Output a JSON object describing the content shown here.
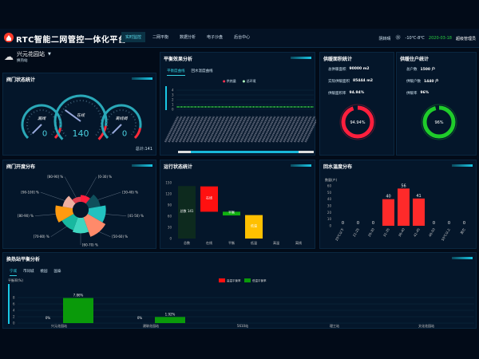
{
  "header": {
    "title": "RTC智能二网管控一体化平台",
    "nav": [
      "实时监控",
      "二网平衡",
      "数据分析",
      "电子沙盘",
      "后台中心"
    ],
    "active_nav": 0,
    "weather_label": "阴转晴",
    "temp": "-10℃-8℃",
    "date": "2020-03-18",
    "user": "超级管理员"
  },
  "station": {
    "name": "兴元花园站",
    "sub": "换热站"
  },
  "valve_status": {
    "title": "阀门状态统计",
    "gauges": [
      {
        "label": "漏阀",
        "value": "0"
      },
      {
        "label": "在线",
        "value": "140"
      },
      {
        "label": "离线阀",
        "value": "0"
      }
    ],
    "total": "总计:141"
  },
  "balance": {
    "title": "平衡效果分析",
    "tabs": [
      "平衡度曲线",
      "回水温度曲线"
    ],
    "active_tab": 0,
    "legend": [
      "供热量",
      "总环境"
    ],
    "yticks": [
      "4",
      "3",
      "2",
      "1",
      "0"
    ]
  },
  "area": {
    "title": "供暖面积统计",
    "rows": [
      {
        "k": "总供暖面积",
        "v": "90000 m2"
      },
      {
        "k": "实际供暖面积",
        "v": "85444 m2"
      },
      {
        "k": "供暖面积率",
        "v": "94.94%"
      }
    ],
    "ring_label": "94.94%",
    "ring_value": 94.94,
    "color": "#ff1f3d"
  },
  "households": {
    "title": "供暖住户统计",
    "rows": [
      {
        "k": "总户数",
        "v": "1500 户"
      },
      {
        "k": "供暖户数",
        "v": "1440 户"
      },
      {
        "k": "供暖率",
        "v": "96%"
      }
    ],
    "ring_label": "96%",
    "ring_value": 96,
    "color": "#1fcc2a"
  },
  "chart_data": [
    {
      "type": "pie",
      "title": "阀门开度分布",
      "variant": "rose",
      "categories": [
        "[0-30) %",
        "[30-40) %",
        "[41-50) %",
        "[50-60) %",
        "[60-70) %",
        "[70-80) %",
        "[80-90) %",
        "[90-100] %",
        "[80-90] %"
      ],
      "values": [
        3,
        6,
        9,
        11,
        8,
        7,
        9,
        5,
        2
      ],
      "colors": [
        "#ff1f3d",
        "#0f4f5c",
        "#22c2c0",
        "#ff8a6a",
        "#3fd6c0",
        "#18b8a0",
        "#ff9a10",
        "#f0b0a0",
        "#e04050"
      ]
    },
    {
      "type": "bar",
      "title": "运行状态统计",
      "variant": "waterfall",
      "categories": [
        "总数",
        "在线",
        "平衡",
        "低温",
        "高温",
        "离线"
      ],
      "ylim": [
        0,
        150
      ],
      "yticks": [
        0,
        30,
        60,
        90,
        120,
        150
      ],
      "bars": [
        {
          "from": 0,
          "to": 141,
          "label": "总数 141",
          "color": "#0d2a1e"
        },
        {
          "from": 72,
          "to": 140,
          "label": "在线",
          "color": "#ff1010"
        },
        {
          "from": 62,
          "to": 72,
          "label": "平衡",
          "color": "#10b010"
        },
        {
          "from": 0,
          "to": 63,
          "label": "低温",
          "color": "#ffc000"
        },
        {
          "from": 0,
          "to": 0,
          "label": "高温",
          "color": "#ffffff"
        },
        {
          "from": 0,
          "to": 0,
          "label": "离线",
          "color": "#ffffff"
        }
      ]
    },
    {
      "type": "bar",
      "title": "回水温度分布",
      "ylabel": "数量(户)",
      "categories": [
        "20℃以下",
        "21-25",
        "26-30",
        "31-35",
        "36-40",
        "41-45",
        "46-50",
        "50℃以上",
        "其它"
      ],
      "values": [
        0,
        0,
        0,
        40,
        56,
        41,
        0,
        0,
        0
      ],
      "ylim": [
        0,
        60
      ],
      "yticks": [
        0,
        10,
        20,
        30,
        40,
        50,
        60
      ],
      "color": "#ff2a2a"
    },
    {
      "type": "bar",
      "title": "换热站平衡分析",
      "ylabel": "平衡率(%)",
      "tabs": [
        "宁城",
        "市同城",
        "桃园",
        "国泰"
      ],
      "active_tab": 0,
      "categories": [
        "兴元花园站",
        "建联花园站",
        "5610站",
        "理工站",
        "文化花园站"
      ],
      "series": [
        {
          "name": "高温平衡率",
          "color": "#ff1010",
          "values": [
            0,
            0,
            null,
            null,
            null
          ]
        },
        {
          "name": "低温平衡率",
          "color": "#0a9a0a",
          "values": [
            7.86,
            1.92,
            null,
            null,
            null
          ]
        }
      ],
      "labels": [
        "0%",
        "7.86%",
        "0%",
        "1.92%"
      ],
      "ylim": [
        0,
        8
      ],
      "yticks": [
        0,
        2,
        4,
        6,
        8
      ]
    }
  ]
}
